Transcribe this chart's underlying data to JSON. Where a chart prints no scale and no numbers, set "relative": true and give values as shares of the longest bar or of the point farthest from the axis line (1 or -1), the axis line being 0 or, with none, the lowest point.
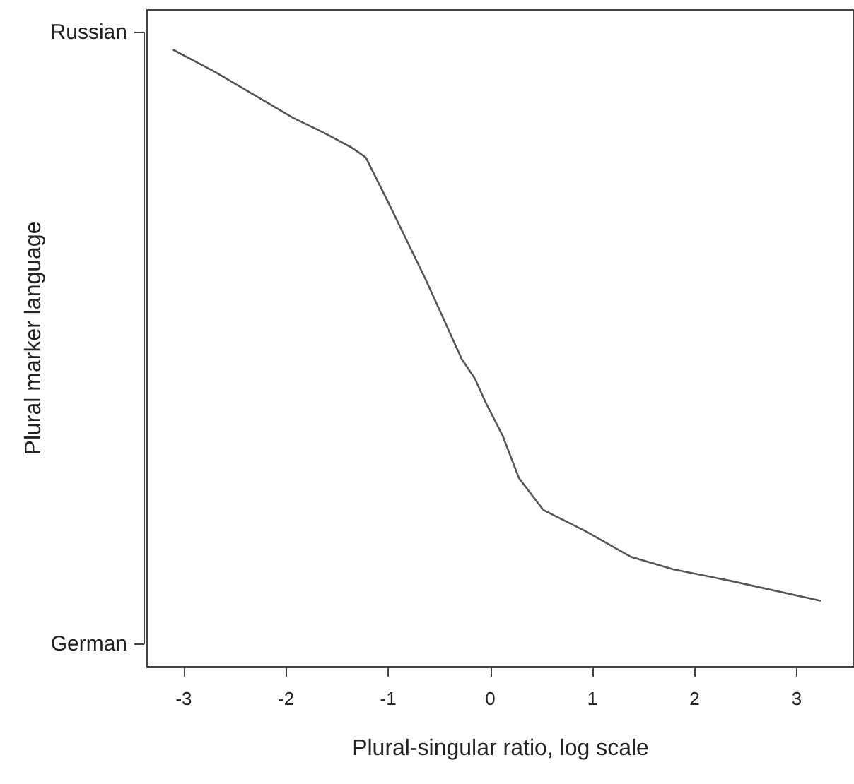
{
  "chart_data": {
    "type": "line",
    "relative": true,
    "xlabel": "Plural-singular ratio, log scale",
    "ylabel": "Plural marker language",
    "annotations": [
      "Russian",
      "German"
    ],
    "xlim": [
      -3.36,
      3.56
    ],
    "xticks": [
      -3,
      -2,
      -1,
      0,
      1,
      2,
      3
    ],
    "grid": false,
    "marker": "none",
    "line_style": "solid",
    "series": [
      {
        "color": "#555555",
        "x": [
          -3.1,
          -2.7,
          -1.93,
          -1.62,
          -1.36,
          -1.22,
          -0.99,
          -0.63,
          -0.28,
          -0.15,
          -0.05,
          0.12,
          0.28,
          0.52,
          0.93,
          1.38,
          1.79,
          2.36,
          3.23
        ],
        "values": [
          1.0,
          0.965,
          0.89,
          0.865,
          0.842,
          0.826,
          0.75,
          0.627,
          0.499,
          0.467,
          0.43,
          0.375,
          0.306,
          0.254,
          0.22,
          0.178,
          0.158,
          0.139,
          0.107
        ]
      }
    ]
  }
}
